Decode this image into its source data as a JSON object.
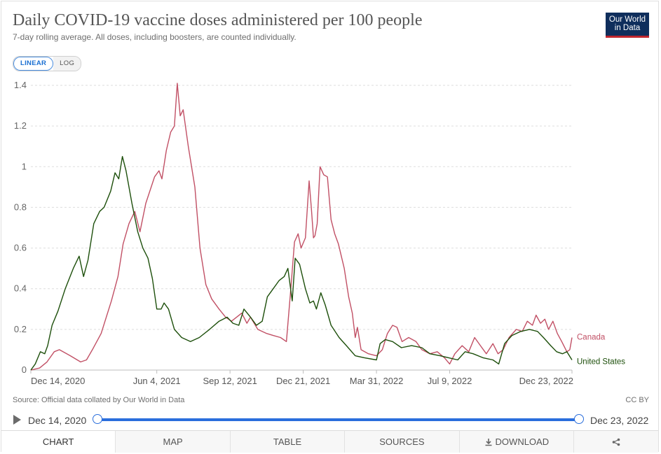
{
  "header": {
    "title": "Daily COVID-19 vaccine doses administered per 100 people",
    "subtitle": "7-day rolling average. All doses, including boosters, are counted individually.",
    "logo_line1": "Our World",
    "logo_line2": "in Data"
  },
  "scale_toggle": {
    "linear_label": "LINEAR",
    "log_label": "LOG",
    "selected": "LINEAR"
  },
  "footer": {
    "source": "Source: Official data collated by Our World in Data",
    "license": "CC BY"
  },
  "timeline": {
    "start_label": "Dec 14, 2020",
    "end_label": "Dec 23, 2022",
    "play_icon": "play-icon"
  },
  "tabs": {
    "chart": "CHART",
    "map": "MAP",
    "table": "TABLE",
    "sources": "SOURCES",
    "download": "DOWNLOAD",
    "download_icon": "download-icon",
    "share_icon": "share-icon"
  },
  "colors": {
    "canada": "#c15065",
    "united_states": "#1d4f0b",
    "accent": "#2a6edc",
    "grid": "#dddddd"
  },
  "chart_data": {
    "type": "line",
    "title": "Daily COVID-19 vaccine doses administered per 100 people",
    "subtitle": "7-day rolling average. All doses, including boosters, are counted individually.",
    "xlabel": "",
    "ylabel": "",
    "ylim": [
      0,
      1.4
    ],
    "y_ticks": [
      0,
      0.2,
      0.4,
      0.6,
      0.8,
      1,
      1.2,
      1.4
    ],
    "y_tick_labels": [
      "0",
      "0.2",
      "0.4",
      "0.6",
      "0.8",
      "1",
      "1.2",
      "1.4"
    ],
    "x_range": [
      "2020-12-14",
      "2022-12-23"
    ],
    "x_ticks": [
      "2020-12-14",
      "2021-06-04",
      "2021-09-12",
      "2021-12-21",
      "2022-03-31",
      "2022-07-09",
      "2022-12-23"
    ],
    "x_tick_labels": [
      "Dec 14, 2020",
      "Jun 4, 2021",
      "Sep 12, 2021",
      "Dec 21, 2021",
      "Mar 31, 2022",
      "Jul 9, 2022",
      "Dec 23, 2022"
    ],
    "grid": "horizontal dashed",
    "legend": "line-end labels",
    "series": [
      {
        "name": "Canada",
        "color": "#c15065",
        "points": [
          [
            "2020-12-14",
            0.0
          ],
          [
            "2020-12-26",
            0.01
          ],
          [
            "2021-01-05",
            0.04
          ],
          [
            "2021-01-15",
            0.09
          ],
          [
            "2021-01-22",
            0.1
          ],
          [
            "2021-02-06",
            0.07
          ],
          [
            "2021-02-20",
            0.04
          ],
          [
            "2021-02-28",
            0.05
          ],
          [
            "2021-03-08",
            0.1
          ],
          [
            "2021-03-20",
            0.18
          ],
          [
            "2021-04-03",
            0.34
          ],
          [
            "2021-04-12",
            0.46
          ],
          [
            "2021-04-19",
            0.62
          ],
          [
            "2021-04-27",
            0.72
          ],
          [
            "2021-05-05",
            0.78
          ],
          [
            "2021-05-12",
            0.68
          ],
          [
            "2021-05-20",
            0.82
          ],
          [
            "2021-06-01",
            0.95
          ],
          [
            "2021-06-07",
            0.98
          ],
          [
            "2021-06-11",
            0.94
          ],
          [
            "2021-06-17",
            1.08
          ],
          [
            "2021-06-23",
            1.17
          ],
          [
            "2021-06-28",
            1.2
          ],
          [
            "2021-07-02",
            1.41
          ],
          [
            "2021-07-06",
            1.25
          ],
          [
            "2021-07-10",
            1.28
          ],
          [
            "2021-07-17",
            1.1
          ],
          [
            "2021-07-26",
            0.9
          ],
          [
            "2021-08-02",
            0.6
          ],
          [
            "2021-08-10",
            0.42
          ],
          [
            "2021-08-18",
            0.35
          ],
          [
            "2021-08-28",
            0.3
          ],
          [
            "2021-09-06",
            0.26
          ],
          [
            "2021-09-14",
            0.24
          ],
          [
            "2021-09-21",
            0.26
          ],
          [
            "2021-09-28",
            0.28
          ],
          [
            "2021-10-05",
            0.23
          ],
          [
            "2021-10-10",
            0.26
          ],
          [
            "2021-10-20",
            0.2
          ],
          [
            "2021-11-01",
            0.18
          ],
          [
            "2021-11-10",
            0.17
          ],
          [
            "2021-11-20",
            0.16
          ],
          [
            "2021-11-28",
            0.14
          ],
          [
            "2021-12-04",
            0.4
          ],
          [
            "2021-12-09",
            0.63
          ],
          [
            "2021-12-14",
            0.67
          ],
          [
            "2021-12-18",
            0.6
          ],
          [
            "2021-12-24",
            0.65
          ],
          [
            "2021-12-29",
            0.93
          ],
          [
            "2022-01-01",
            0.8
          ],
          [
            "2022-01-04",
            0.65
          ],
          [
            "2022-01-06",
            0.66
          ],
          [
            "2022-01-09",
            0.72
          ],
          [
            "2022-01-13",
            1.0
          ],
          [
            "2022-01-18",
            0.96
          ],
          [
            "2022-01-23",
            0.95
          ],
          [
            "2022-01-28",
            0.74
          ],
          [
            "2022-02-02",
            0.67
          ],
          [
            "2022-02-07",
            0.62
          ],
          [
            "2022-02-15",
            0.5
          ],
          [
            "2022-02-21",
            0.36
          ],
          [
            "2022-02-26",
            0.28
          ],
          [
            "2022-03-02",
            0.16
          ],
          [
            "2022-03-05",
            0.21
          ],
          [
            "2022-03-10",
            0.1
          ],
          [
            "2022-03-20",
            0.08
          ],
          [
            "2022-03-31",
            0.07
          ],
          [
            "2022-04-08",
            0.1
          ],
          [
            "2022-04-15",
            0.18
          ],
          [
            "2022-04-22",
            0.22
          ],
          [
            "2022-04-28",
            0.21
          ],
          [
            "2022-05-05",
            0.14
          ],
          [
            "2022-05-14",
            0.16
          ],
          [
            "2022-05-24",
            0.14
          ],
          [
            "2022-06-01",
            0.1
          ],
          [
            "2022-06-12",
            0.08
          ],
          [
            "2022-06-22",
            0.09
          ],
          [
            "2022-07-02",
            0.06
          ],
          [
            "2022-07-09",
            0.03
          ],
          [
            "2022-07-16",
            0.08
          ],
          [
            "2022-07-26",
            0.12
          ],
          [
            "2022-08-04",
            0.09
          ],
          [
            "2022-08-12",
            0.16
          ],
          [
            "2022-08-20",
            0.12
          ],
          [
            "2022-08-28",
            0.08
          ],
          [
            "2022-09-06",
            0.13
          ],
          [
            "2022-09-13",
            0.08
          ],
          [
            "2022-09-20",
            0.1
          ],
          [
            "2022-09-28",
            0.16
          ],
          [
            "2022-10-08",
            0.2
          ],
          [
            "2022-10-16",
            0.19
          ],
          [
            "2022-10-23",
            0.24
          ],
          [
            "2022-10-30",
            0.22
          ],
          [
            "2022-11-04",
            0.27
          ],
          [
            "2022-11-10",
            0.23
          ],
          [
            "2022-11-16",
            0.25
          ],
          [
            "2022-11-21",
            0.2
          ],
          [
            "2022-11-27",
            0.24
          ],
          [
            "2022-12-03",
            0.18
          ],
          [
            "2022-12-09",
            0.14
          ],
          [
            "2022-12-16",
            0.09
          ],
          [
            "2022-12-20",
            0.1
          ],
          [
            "2022-12-23",
            0.16
          ]
        ]
      },
      {
        "name": "United States",
        "color": "#1d4f0b",
        "points": [
          [
            "2020-12-14",
            0.0
          ],
          [
            "2020-12-20",
            0.03
          ],
          [
            "2020-12-27",
            0.09
          ],
          [
            "2021-01-02",
            0.08
          ],
          [
            "2021-01-06",
            0.12
          ],
          [
            "2021-01-12",
            0.22
          ],
          [
            "2021-01-20",
            0.29
          ],
          [
            "2021-01-30",
            0.4
          ],
          [
            "2021-02-10",
            0.5
          ],
          [
            "2021-02-18",
            0.56
          ],
          [
            "2021-02-24",
            0.46
          ],
          [
            "2021-03-02",
            0.54
          ],
          [
            "2021-03-10",
            0.72
          ],
          [
            "2021-03-18",
            0.78
          ],
          [
            "2021-03-24",
            0.8
          ],
          [
            "2021-04-02",
            0.88
          ],
          [
            "2021-04-08",
            0.97
          ],
          [
            "2021-04-13",
            0.94
          ],
          [
            "2021-04-18",
            1.05
          ],
          [
            "2021-04-23",
            0.98
          ],
          [
            "2021-05-01",
            0.82
          ],
          [
            "2021-05-09",
            0.68
          ],
          [
            "2021-05-16",
            0.6
          ],
          [
            "2021-05-23",
            0.55
          ],
          [
            "2021-05-29",
            0.45
          ],
          [
            "2021-06-04",
            0.3
          ],
          [
            "2021-06-10",
            0.3
          ],
          [
            "2021-06-14",
            0.33
          ],
          [
            "2021-06-20",
            0.3
          ],
          [
            "2021-06-28",
            0.2
          ],
          [
            "2021-07-08",
            0.16
          ],
          [
            "2021-07-20",
            0.14
          ],
          [
            "2021-08-01",
            0.16
          ],
          [
            "2021-08-15",
            0.2
          ],
          [
            "2021-08-28",
            0.24
          ],
          [
            "2021-09-08",
            0.26
          ],
          [
            "2021-09-16",
            0.23
          ],
          [
            "2021-09-24",
            0.22
          ],
          [
            "2021-10-01",
            0.3
          ],
          [
            "2021-10-10",
            0.26
          ],
          [
            "2021-10-18",
            0.22
          ],
          [
            "2021-10-26",
            0.24
          ],
          [
            "2021-11-02",
            0.36
          ],
          [
            "2021-11-10",
            0.4
          ],
          [
            "2021-11-18",
            0.44
          ],
          [
            "2021-11-25",
            0.46
          ],
          [
            "2021-11-30",
            0.5
          ],
          [
            "2021-12-06",
            0.34
          ],
          [
            "2021-12-10",
            0.55
          ],
          [
            "2021-12-16",
            0.52
          ],
          [
            "2021-12-24",
            0.4
          ],
          [
            "2021-12-30",
            0.33
          ],
          [
            "2022-01-04",
            0.34
          ],
          [
            "2022-01-08",
            0.3
          ],
          [
            "2022-01-14",
            0.38
          ],
          [
            "2022-01-20",
            0.32
          ],
          [
            "2022-01-28",
            0.22
          ],
          [
            "2022-02-08",
            0.16
          ],
          [
            "2022-02-18",
            0.12
          ],
          [
            "2022-03-02",
            0.07
          ],
          [
            "2022-03-15",
            0.06
          ],
          [
            "2022-03-31",
            0.05
          ],
          [
            "2022-04-05",
            0.13
          ],
          [
            "2022-04-12",
            0.15
          ],
          [
            "2022-04-22",
            0.14
          ],
          [
            "2022-05-04",
            0.11
          ],
          [
            "2022-05-18",
            0.12
          ],
          [
            "2022-06-01",
            0.11
          ],
          [
            "2022-06-12",
            0.08
          ],
          [
            "2022-06-26",
            0.07
          ],
          [
            "2022-07-08",
            0.06
          ],
          [
            "2022-07-20",
            0.05
          ],
          [
            "2022-07-30",
            0.09
          ],
          [
            "2022-08-10",
            0.08
          ],
          [
            "2022-08-24",
            0.06
          ],
          [
            "2022-09-06",
            0.05
          ],
          [
            "2022-09-14",
            0.03
          ],
          [
            "2022-09-22",
            0.13
          ],
          [
            "2022-10-02",
            0.17
          ],
          [
            "2022-10-14",
            0.19
          ],
          [
            "2022-10-26",
            0.2
          ],
          [
            "2022-11-06",
            0.19
          ],
          [
            "2022-11-14",
            0.16
          ],
          [
            "2022-11-24",
            0.12
          ],
          [
            "2022-12-02",
            0.09
          ],
          [
            "2022-12-10",
            0.08
          ],
          [
            "2022-12-16",
            0.09
          ],
          [
            "2022-12-23",
            0.05
          ]
        ]
      }
    ]
  }
}
